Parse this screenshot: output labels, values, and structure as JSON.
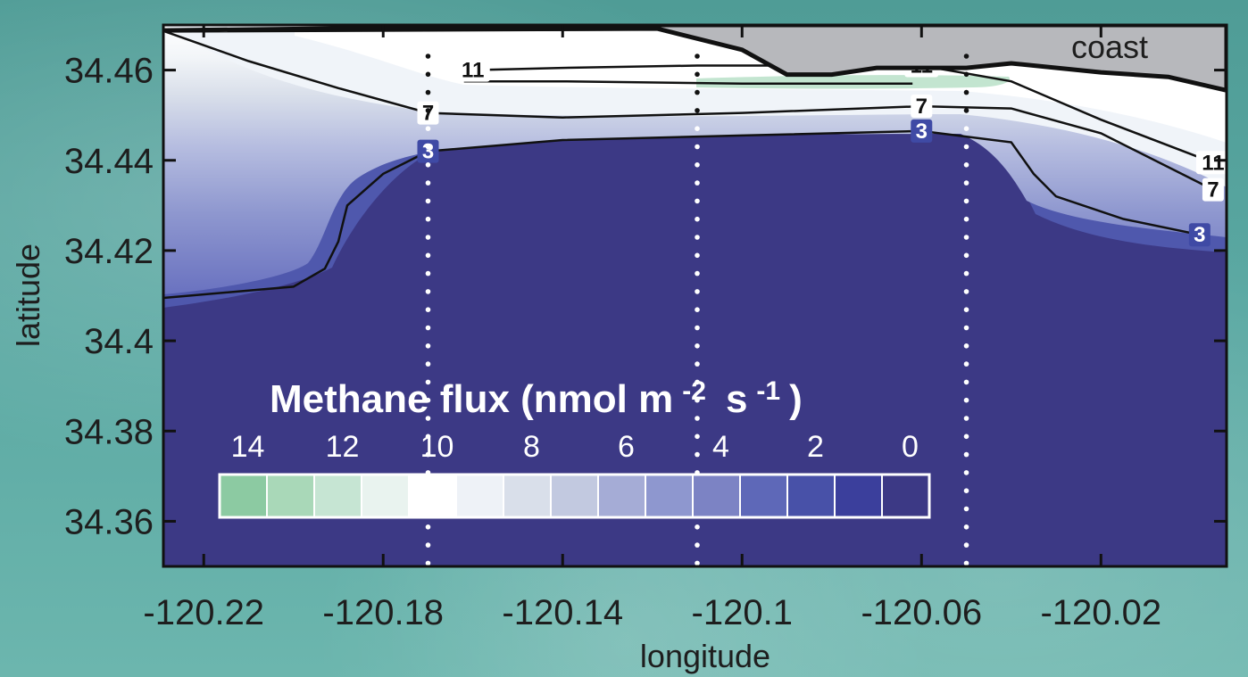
{
  "chart_data": {
    "type": "contour",
    "title": "Methane flux",
    "colorbar_label_main": "Methane flux (nmol m",
    "colorbar_unit_m_exp": "-2",
    "colorbar_unit_s": "s",
    "colorbar_unit_s_exp": "-1",
    "colorbar_close": ")",
    "xlabel": "longitude",
    "ylabel": "latitude",
    "xlim": [
      -120.229,
      -119.992
    ],
    "ylim": [
      34.35,
      34.47
    ],
    "x_ticks": [
      -120.22,
      -120.18,
      -120.14,
      -120.1,
      -120.06,
      -120.02
    ],
    "x_tick_labels": [
      "-120.22",
      "-120.18",
      "-120.14",
      "-120.1",
      "-120.06",
      "-120.02"
    ],
    "y_ticks": [
      34.36,
      34.38,
      34.4,
      34.42,
      34.44,
      34.46
    ],
    "y_tick_labels": [
      "34.36",
      "34.38",
      "34.4",
      "34.42",
      "34.44",
      "34.46"
    ],
    "colorbar_levels": [
      14,
      13,
      12,
      11,
      10,
      9,
      8,
      7,
      6,
      5,
      4,
      3,
      2,
      1,
      0
    ],
    "colorbar_tick_values": [
      14,
      12,
      10,
      8,
      6,
      4,
      2,
      0
    ],
    "colorbar_tick_labels": [
      "14",
      "12",
      "10",
      "8",
      "6",
      "4",
      "2",
      "0"
    ],
    "colorbar_colors": [
      "#8ccaa2",
      "#a9d8b8",
      "#c6e5d3",
      "#e9f3ef",
      "#ffffff",
      "#eef2f7",
      "#d9dfea",
      "#c2c9e0",
      "#a5acd6",
      "#8e97cf",
      "#7c83c4",
      "#5e68b8",
      "#4851a8",
      "#3b3f9c",
      "#3c3985"
    ],
    "transect_longitudes": [
      -120.17,
      -120.11,
      -120.05
    ],
    "contours": [
      {
        "level": 3,
        "label": "3",
        "points": [
          [
            -120.229,
            34.4095
          ],
          [
            -120.2,
            34.412
          ],
          [
            -120.193,
            34.416
          ],
          [
            -120.19,
            34.422
          ],
          [
            -120.188,
            34.43
          ],
          [
            -120.18,
            34.437
          ],
          [
            -120.17,
            34.442
          ],
          [
            -120.14,
            34.4445
          ],
          [
            -120.1,
            34.4455
          ],
          [
            -120.06,
            34.4465
          ],
          [
            -120.04,
            34.444
          ],
          [
            -120.035,
            34.437
          ],
          [
            -120.03,
            34.432
          ],
          [
            -120.015,
            34.427
          ],
          [
            -119.998,
            34.4235
          ]
        ]
      },
      {
        "level": 7,
        "label": "7",
        "points": [
          [
            -120.2285,
            34.4685
          ],
          [
            -120.21,
            34.462
          ],
          [
            -120.19,
            34.456
          ],
          [
            -120.17,
            34.4505
          ],
          [
            -120.14,
            34.4495
          ],
          [
            -120.1,
            34.4505
          ],
          [
            -120.06,
            34.452
          ],
          [
            -120.04,
            34.4515
          ],
          [
            -120.02,
            34.446
          ],
          [
            -119.995,
            34.4335
          ]
        ]
      },
      {
        "level": 11,
        "label": "11",
        "points": [
          [
            -120.162,
            34.4575
          ],
          [
            -120.16,
            34.46
          ],
          [
            -120.14,
            34.4605
          ],
          [
            -120.11,
            34.461
          ],
          [
            -120.085,
            34.461
          ],
          [
            -120.06,
            34.461
          ],
          [
            -120.04,
            34.4575
          ],
          [
            -120.02,
            34.449
          ],
          [
            -119.995,
            34.4395
          ]
        ]
      },
      {
        "level": 11,
        "label": "11",
        "points": [
          [
            -120.162,
            34.4575
          ],
          [
            -120.14,
            34.4575
          ],
          [
            -120.1,
            34.457
          ],
          [
            -120.062,
            34.457
          ]
        ]
      },
      {
        "level": 7,
        "label": "7",
        "points": [
          [
            -120.21,
            34.469
          ],
          [
            -120.19,
            34.4688
          ],
          [
            -120.11,
            34.469
          ]
        ]
      }
    ],
    "coastline": [
      [
        -120.229,
        34.4688
      ],
      [
        -120.119,
        34.4692
      ],
      [
        -120.1,
        34.4645
      ],
      [
        -120.09,
        34.459
      ],
      [
        -120.08,
        34.459
      ],
      [
        -120.07,
        34.4605
      ],
      [
        -120.05,
        34.4605
      ],
      [
        -120.04,
        34.4615
      ],
      [
        -120.02,
        34.4595
      ],
      [
        -120.005,
        34.4585
      ],
      [
        -119.992,
        34.4555
      ]
    ],
    "coast_label": "coast"
  }
}
